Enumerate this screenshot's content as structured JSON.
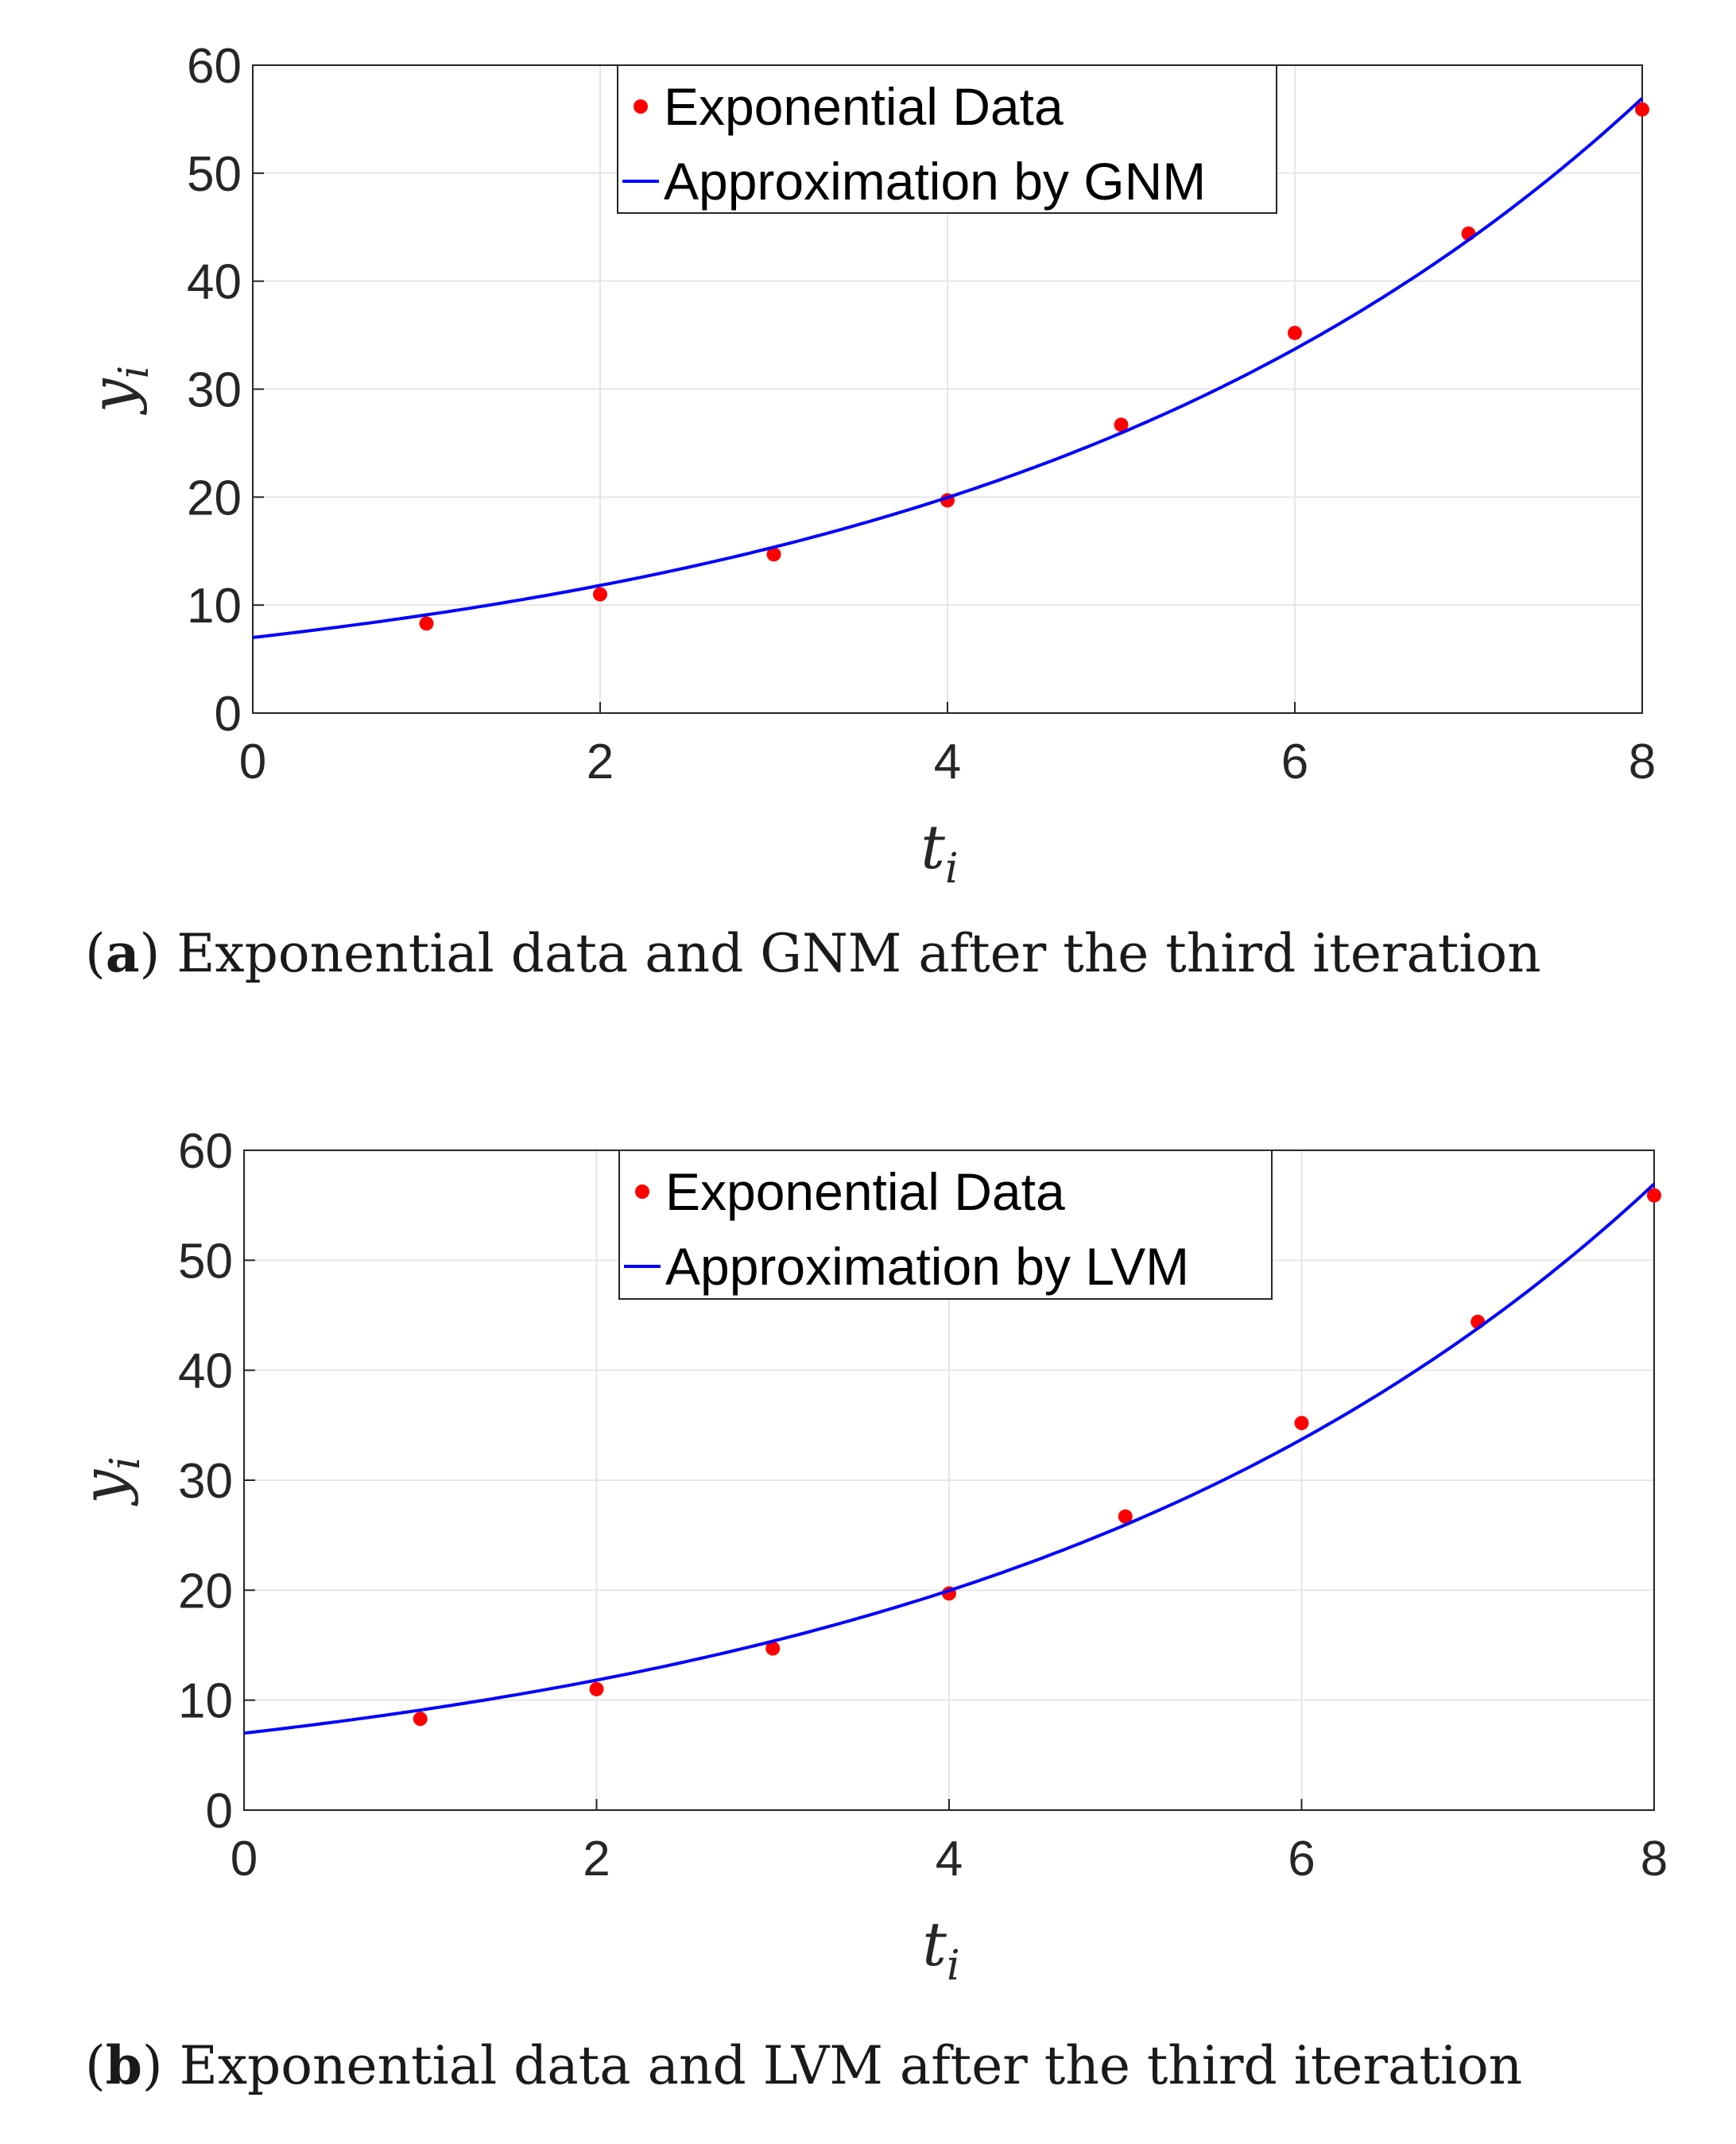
{
  "chart_data": [
    {
      "type": "scatter",
      "panel": "a",
      "caption_letter": "a",
      "caption_text": "Exponential data and GNM after the third iteration",
      "xlabel": "t",
      "xlabel_sub": "i",
      "ylabel": "y",
      "ylabel_sub": "i",
      "xlim": [
        0,
        8
      ],
      "ylim": [
        0,
        60
      ],
      "xticks": [
        0,
        2,
        4,
        6,
        8
      ],
      "yticks": [
        0,
        10,
        20,
        30,
        40,
        50,
        60
      ],
      "grid": true,
      "legend_position": "top-center",
      "series": [
        {
          "name": "Exponential Data",
          "kind": "markers",
          "color": "#ff0000",
          "x": [
            1,
            2,
            3,
            4,
            5,
            6,
            7,
            8
          ],
          "y": [
            8.3,
            11.0,
            14.7,
            19.7,
            26.7,
            35.2,
            44.4,
            55.9
          ]
        },
        {
          "name": "Approximation by GNM",
          "kind": "line",
          "color": "#0000ff",
          "model": {
            "a": 7.0,
            "b": 0.262
          }
        }
      ]
    },
    {
      "type": "scatter",
      "panel": "b",
      "caption_letter": "b",
      "caption_text": "Exponential data and LVM after the third iteration",
      "xlabel": "t",
      "xlabel_sub": "i",
      "ylabel": "y",
      "ylabel_sub": "i",
      "xlim": [
        0,
        8
      ],
      "ylim": [
        0,
        60
      ],
      "xticks": [
        0,
        2,
        4,
        6,
        8
      ],
      "yticks": [
        0,
        10,
        20,
        30,
        40,
        50,
        60
      ],
      "grid": true,
      "legend_position": "top-center",
      "series": [
        {
          "name": "Exponential Data",
          "kind": "markers",
          "color": "#ff0000",
          "x": [
            1,
            2,
            3,
            4,
            5,
            6,
            7,
            8
          ],
          "y": [
            8.3,
            11.0,
            14.7,
            19.7,
            26.7,
            35.2,
            44.4,
            55.9
          ]
        },
        {
          "name": "Approximation by LVM",
          "kind": "line",
          "color": "#0000ff",
          "model": {
            "a": 7.0,
            "b": 0.262
          }
        }
      ]
    }
  ]
}
